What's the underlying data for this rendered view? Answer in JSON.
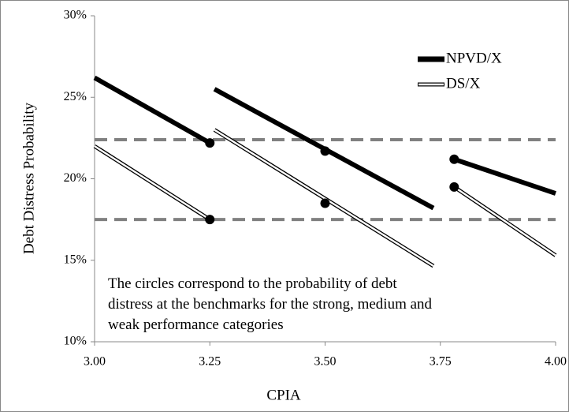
{
  "chart_data": {
    "type": "line",
    "x_label": "CPIA",
    "y_label": "Debt Distress Probability",
    "xlim": [
      3.0,
      4.0
    ],
    "xticks": [
      {
        "value": 3.0,
        "label": "3.00"
      },
      {
        "value": 3.25,
        "label": "3.25"
      },
      {
        "value": 3.5,
        "label": "3.50"
      },
      {
        "value": 3.75,
        "label": "3.75"
      },
      {
        "value": 4.0,
        "label": "4.00"
      }
    ],
    "ylim": [
      10,
      30
    ],
    "yticks": [
      {
        "value": 10,
        "label": "10%"
      },
      {
        "value": 15,
        "label": "15%"
      },
      {
        "value": 20,
        "label": "20%"
      },
      {
        "value": 25,
        "label": "25%"
      },
      {
        "value": 30,
        "label": "30%"
      }
    ],
    "grid": false,
    "legend_position": "upper right",
    "series": [
      {
        "name": "NPVD/X",
        "style": "solid",
        "color": "#000000",
        "x": [
          3.0,
          3.25,
          null,
          3.26,
          3.735,
          null,
          3.78,
          4.0
        ],
        "values": [
          26.2,
          22.2,
          null,
          25.5,
          18.2,
          null,
          21.2,
          19.1
        ],
        "marker_x": [
          3.25,
          3.5,
          3.78
        ],
        "marker_values": [
          22.2,
          21.7,
          21.2
        ]
      },
      {
        "name": "DS/X",
        "style": "hollow",
        "color": "#000000",
        "x": [
          3.0,
          3.25,
          null,
          3.26,
          3.735,
          null,
          3.78,
          4.0
        ],
        "values": [
          22.0,
          17.5,
          null,
          23.0,
          14.65,
          null,
          19.5,
          15.3
        ],
        "marker_x": [
          3.25,
          3.5,
          3.78
        ],
        "marker_values": [
          17.5,
          18.5,
          19.5
        ]
      }
    ],
    "reference_lines": {
      "color": "#808080",
      "values": [
        22.4,
        17.5
      ]
    },
    "annotation": [
      "The circles correspond to the probability of debt",
      "distress at the benchmarks for the strong, medium and",
      "weak performance categories"
    ]
  }
}
